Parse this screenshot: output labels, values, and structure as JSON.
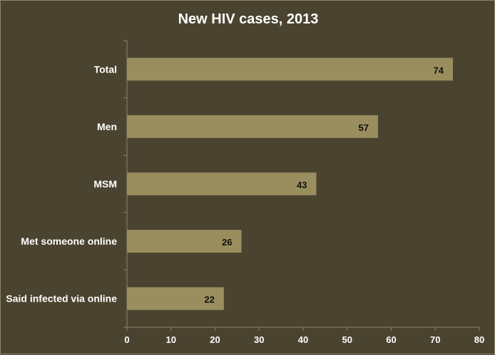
{
  "chart_data": {
    "type": "bar",
    "orientation": "horizontal",
    "title": "New HIV cases, 2013",
    "categories": [
      "Total",
      "Men",
      "MSM",
      "Met someone online",
      "Said infected via online"
    ],
    "values": [
      74,
      57,
      43,
      26,
      22
    ],
    "xlim": [
      0,
      80
    ],
    "xticks": [
      0,
      10,
      20,
      30,
      40,
      50,
      60,
      70,
      80
    ],
    "xlabel": "",
    "ylabel": "",
    "grid": false,
    "legend": "none",
    "bar_color": "#9a8e5e",
    "background_color": "#4a4330"
  }
}
